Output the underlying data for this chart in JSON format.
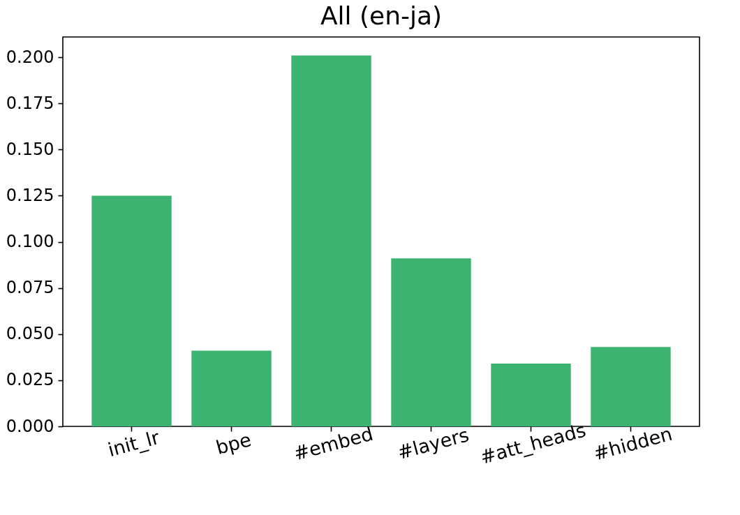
{
  "chart_data": {
    "type": "bar",
    "title": "All (en-ja)",
    "categories": [
      "init_lr",
      "bpe",
      "#embed",
      "#layers",
      "#att_heads",
      "#hidden"
    ],
    "values": [
      0.125,
      0.041,
      0.201,
      0.091,
      0.034,
      0.043
    ],
    "color": "#3db371",
    "ylim": [
      0,
      0.211
    ],
    "yticks": [
      {
        "value": 0,
        "label": "0.000"
      },
      {
        "value": 0.025,
        "label": "0.025"
      },
      {
        "value": 0.05,
        "label": "0.050"
      },
      {
        "value": 0.075,
        "label": "0.075"
      },
      {
        "value": 0.1,
        "label": "0.100"
      },
      {
        "value": 0.125,
        "label": "0.125"
      },
      {
        "value": 0.15,
        "label": "0.150"
      },
      {
        "value": 0.175,
        "label": "0.175"
      },
      {
        "value": 0.2,
        "label": "0.200"
      }
    ],
    "grid": false
  }
}
